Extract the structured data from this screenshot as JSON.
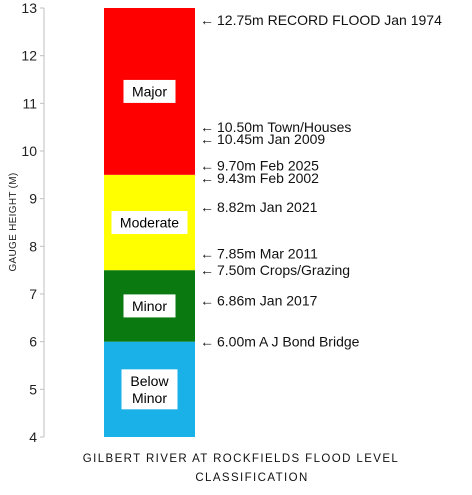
{
  "chart_data": {
    "type": "bar",
    "ylabel": "GAUGE HEIGHT (M)",
    "xlabel_lines": [
      "GILBERT RIVER AT ROCKFIELDS FLOOD LEVEL",
      "CLASSIFICATION"
    ],
    "ylim": [
      4,
      13
    ],
    "yticks": [
      "4",
      "5",
      "6",
      "7",
      "8",
      "9",
      "10",
      "11",
      "12",
      "13"
    ],
    "grid": false,
    "bands": [
      {
        "name": "Below Minor",
        "label_lines": [
          "Below",
          "Minor"
        ],
        "from": 4,
        "to": 6,
        "color": "#1ab0e8"
      },
      {
        "name": "Minor",
        "label_lines": [
          "Minor"
        ],
        "from": 6,
        "to": 7.5,
        "color": "#0a7a10"
      },
      {
        "name": "Moderate",
        "label_lines": [
          "Moderate"
        ],
        "from": 7.5,
        "to": 9.5,
        "color": "#ffff00"
      },
      {
        "name": "Major",
        "label_lines": [
          "Major"
        ],
        "from": 9.5,
        "to": 13,
        "color": "#ff0000"
      }
    ],
    "annotations": [
      {
        "value": 12.75,
        "text": "12.75m RECORD FLOOD Jan 1974"
      },
      {
        "value": 10.5,
        "text": "10.50m Town/Houses"
      },
      {
        "value": 10.45,
        "text": "10.45m Jan 2009"
      },
      {
        "value": 9.7,
        "text": "9.70m Feb 2025"
      },
      {
        "value": 9.43,
        "text": "9.43m Feb 2002"
      },
      {
        "value": 8.82,
        "text": "8.82m Jan 2021"
      },
      {
        "value": 7.85,
        "text": "7.85m Mar 2011"
      },
      {
        "value": 7.5,
        "text": "7.50m Crops/Grazing"
      },
      {
        "value": 6.86,
        "text": "6.86m Jan 2017"
      },
      {
        "value": 6.0,
        "text": "6.00m A J Bond Bridge"
      }
    ],
    "colors": {
      "axis": "#bfbfbf",
      "text": "#111111"
    }
  }
}
